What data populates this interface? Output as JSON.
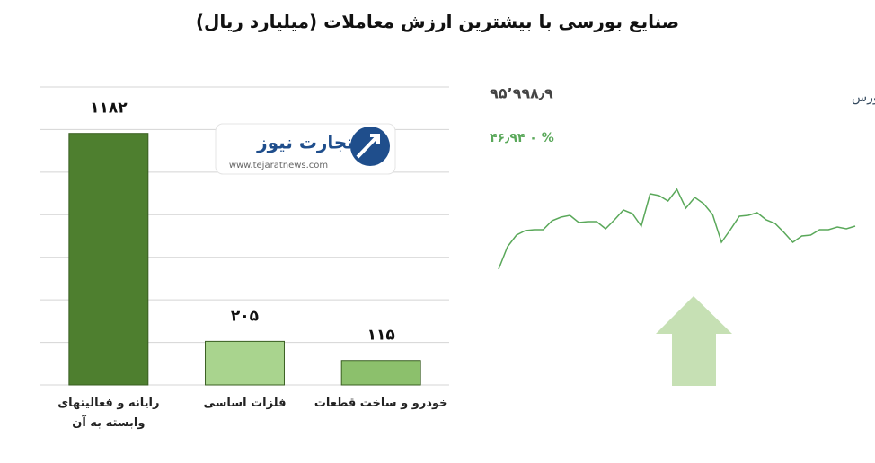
{
  "chart_data": [
    {
      "type": "bar",
      "title": "صنایع بورسی با بیشترین ارزش معاملات  (میلیارد ریال)",
      "categories": [
        "رایانه و فعالیتهای وابسته به آن",
        "فلزات اساسی",
        "خودرو و ساخت قطعات"
      ],
      "values": [
        1182,
        205,
        115
      ],
      "value_labels": [
        "۱۱۸۲",
        "۲۰۵",
        "۱۱۵"
      ],
      "colors": [
        "#4e7f2f",
        "#a9d48e",
        "#8cc06c"
      ],
      "ylim": [
        0,
        1400
      ],
      "yticks": [
        0,
        200,
        400,
        600,
        800,
        1000,
        1200,
        1400
      ],
      "grid": true
    },
    {
      "type": "line",
      "title": "کل بورس",
      "subtitle": "۹۵٬۹۹۸٫۹",
      "annotation": "۴۶٫۹۴ ۰ %",
      "color": "#5aa85a",
      "values": [
        20,
        45,
        58,
        63,
        64,
        64,
        74,
        78,
        80,
        72,
        73,
        73,
        65,
        75,
        86,
        82,
        68,
        104,
        102,
        96,
        109,
        88,
        100,
        93,
        81,
        50,
        64,
        79,
        80,
        83,
        75,
        71,
        61,
        50,
        57,
        58,
        64,
        64,
        67,
        65,
        68
      ],
      "ylim": [
        0,
        120
      ]
    }
  ],
  "logo": {
    "name": "تجارت نیوز",
    "url": "www.tejaratnews.com"
  }
}
